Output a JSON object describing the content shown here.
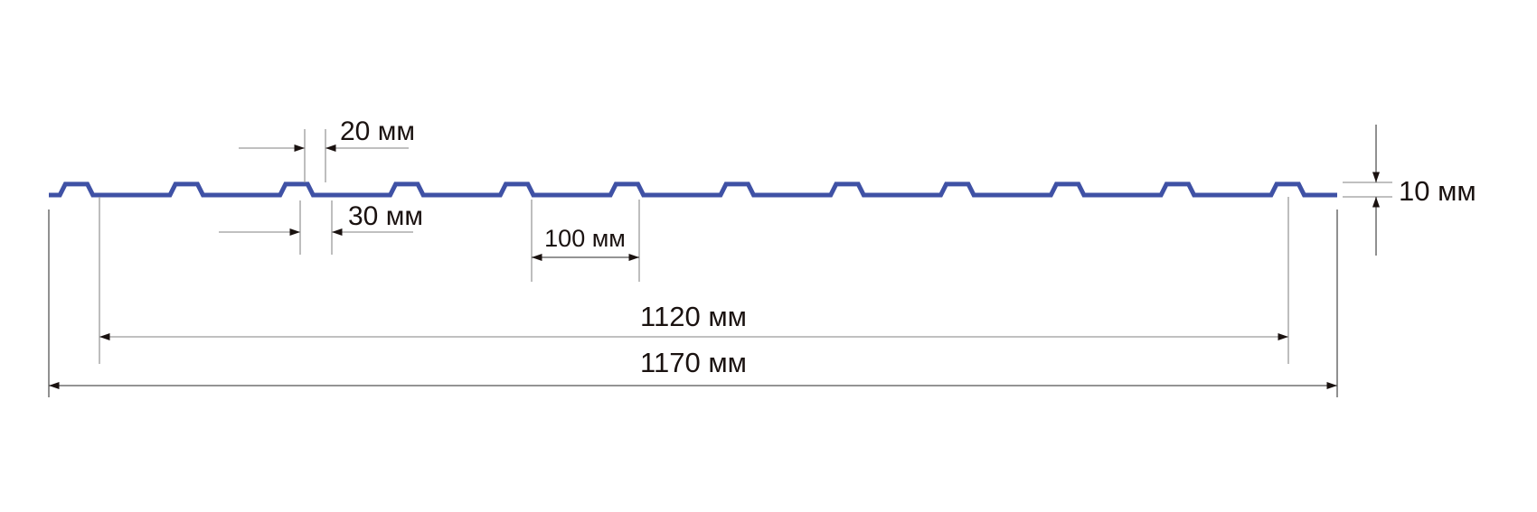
{
  "colors": {
    "profile": "#3f51a5",
    "dimension_line": "#9a9a9a",
    "text": "#1a1210"
  },
  "profile": {
    "rib_count": 12,
    "overall_width_mm": 1170,
    "effective_width_mm": 1120,
    "rib_pitch_mm": 100,
    "rib_top_mm": 20,
    "rib_base_mm": 30,
    "rib_height_mm": 10
  },
  "labels": {
    "rib_top": "20 мм",
    "rib_base": "30 мм",
    "pitch": "100 мм",
    "height": "10 мм",
    "effective_width": "1120 мм",
    "overall_width": "1170 мм"
  }
}
